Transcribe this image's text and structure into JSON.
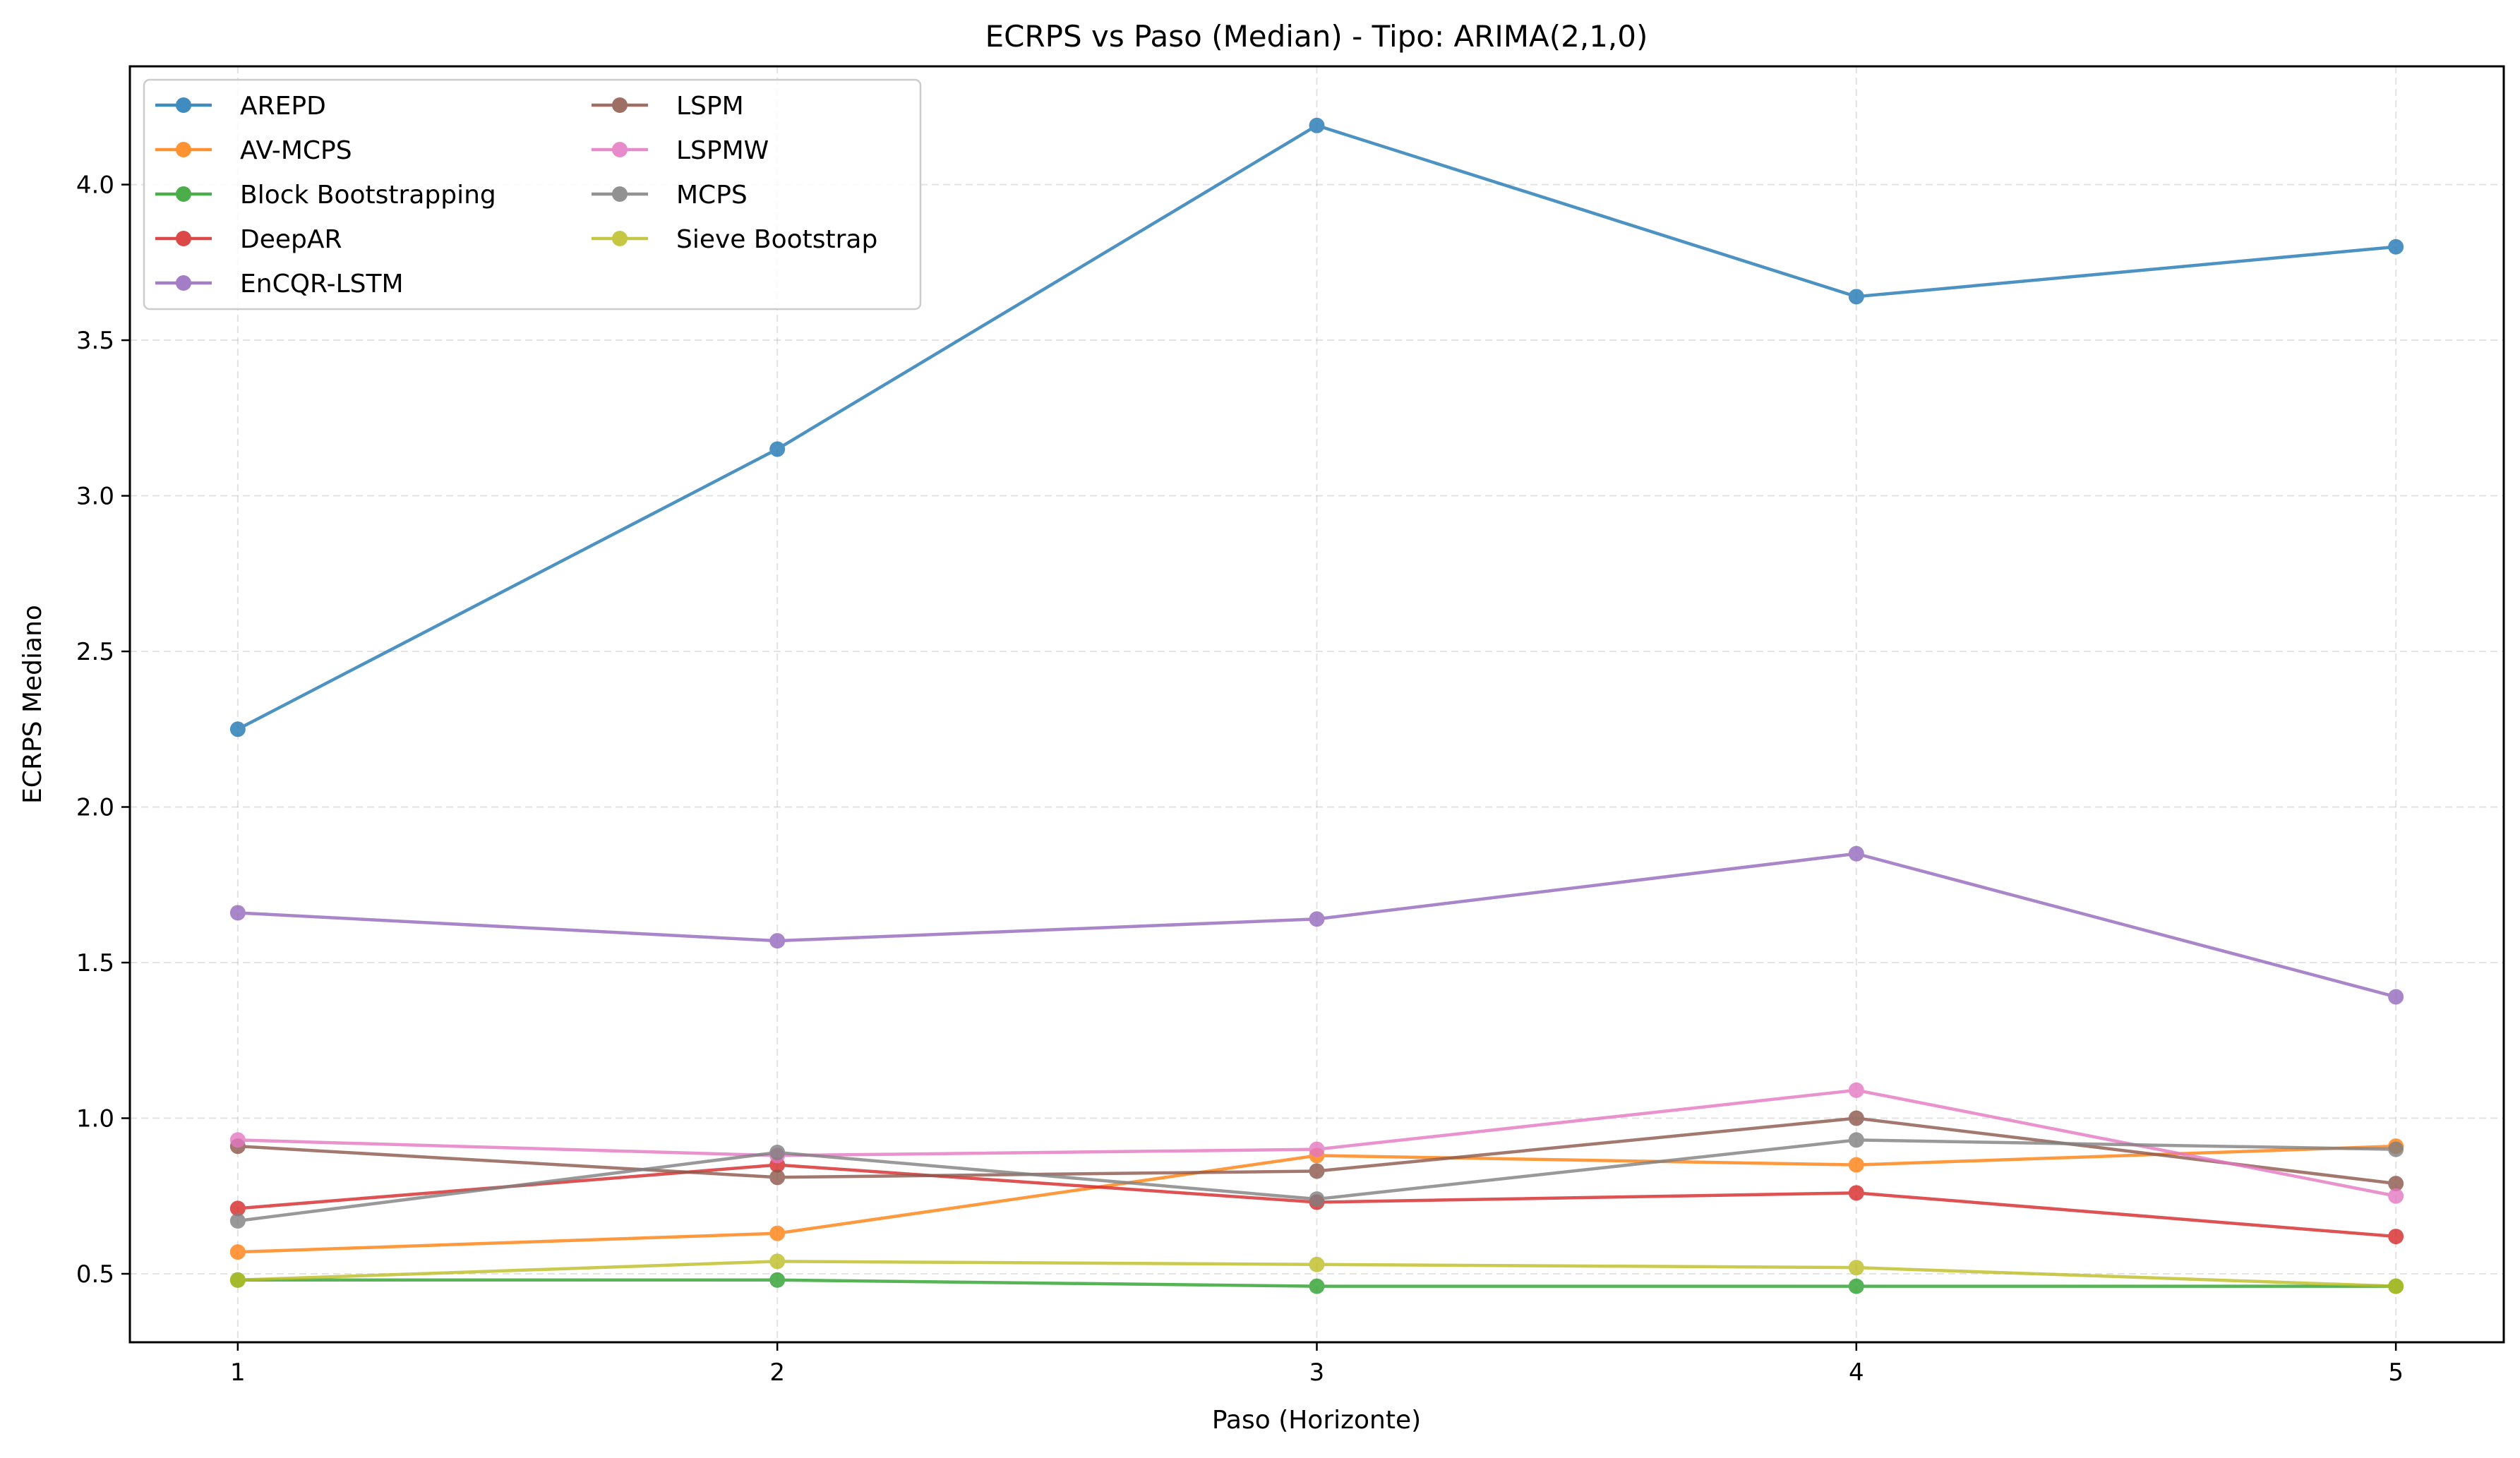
{
  "chart_data": {
    "type": "line",
    "title": "ECRPS vs Paso (Median) - Tipo: ARIMA(2,1,0)",
    "xlabel": "Paso (Horizonte)",
    "ylabel": "ECRPS Mediano",
    "x": [
      1,
      2,
      3,
      4,
      5
    ],
    "xlim": [
      0.8,
      5.2
    ],
    "ylim": [
      0.28,
      4.38
    ],
    "yticks": [
      0.5,
      1.0,
      1.5,
      2.0,
      2.5,
      3.0,
      3.5,
      4.0
    ],
    "ytick_labels": [
      "0.5",
      "1.0",
      "1.5",
      "2.0",
      "2.5",
      "3.0",
      "3.5",
      "4.0"
    ],
    "xtick_labels": [
      "1",
      "2",
      "3",
      "4",
      "5"
    ],
    "grid": true,
    "legend_position": "top-left",
    "legend_columns": 2,
    "series": [
      {
        "name": "AREPD",
        "color": "#1f77b4",
        "values": [
          2.25,
          3.15,
          4.19,
          3.64,
          3.8
        ]
      },
      {
        "name": "AV-MCPS",
        "color": "#ff7f0e",
        "values": [
          0.57,
          0.63,
          0.88,
          0.85,
          0.91
        ]
      },
      {
        "name": "Block Bootstrapping",
        "color": "#2ca02c",
        "values": [
          0.48,
          0.48,
          0.46,
          0.46,
          0.46
        ]
      },
      {
        "name": "DeepAR",
        "color": "#d62728",
        "values": [
          0.71,
          0.85,
          0.73,
          0.76,
          0.62
        ]
      },
      {
        "name": "EnCQR-LSTM",
        "color": "#9467bd",
        "values": [
          1.66,
          1.57,
          1.64,
          1.85,
          1.39
        ]
      },
      {
        "name": "LSPM",
        "color": "#8c564b",
        "values": [
          0.91,
          0.81,
          0.83,
          1.0,
          0.79
        ]
      },
      {
        "name": "LSPMW",
        "color": "#e377c2",
        "values": [
          0.93,
          0.88,
          0.9,
          1.09,
          0.75
        ]
      },
      {
        "name": "MCPS",
        "color": "#7f7f7f",
        "values": [
          0.67,
          0.89,
          0.74,
          0.93,
          0.9
        ]
      },
      {
        "name": "Sieve Bootstrap",
        "color": "#bcbd22",
        "values": [
          0.48,
          0.54,
          0.53,
          0.52,
          0.46
        ]
      }
    ]
  }
}
